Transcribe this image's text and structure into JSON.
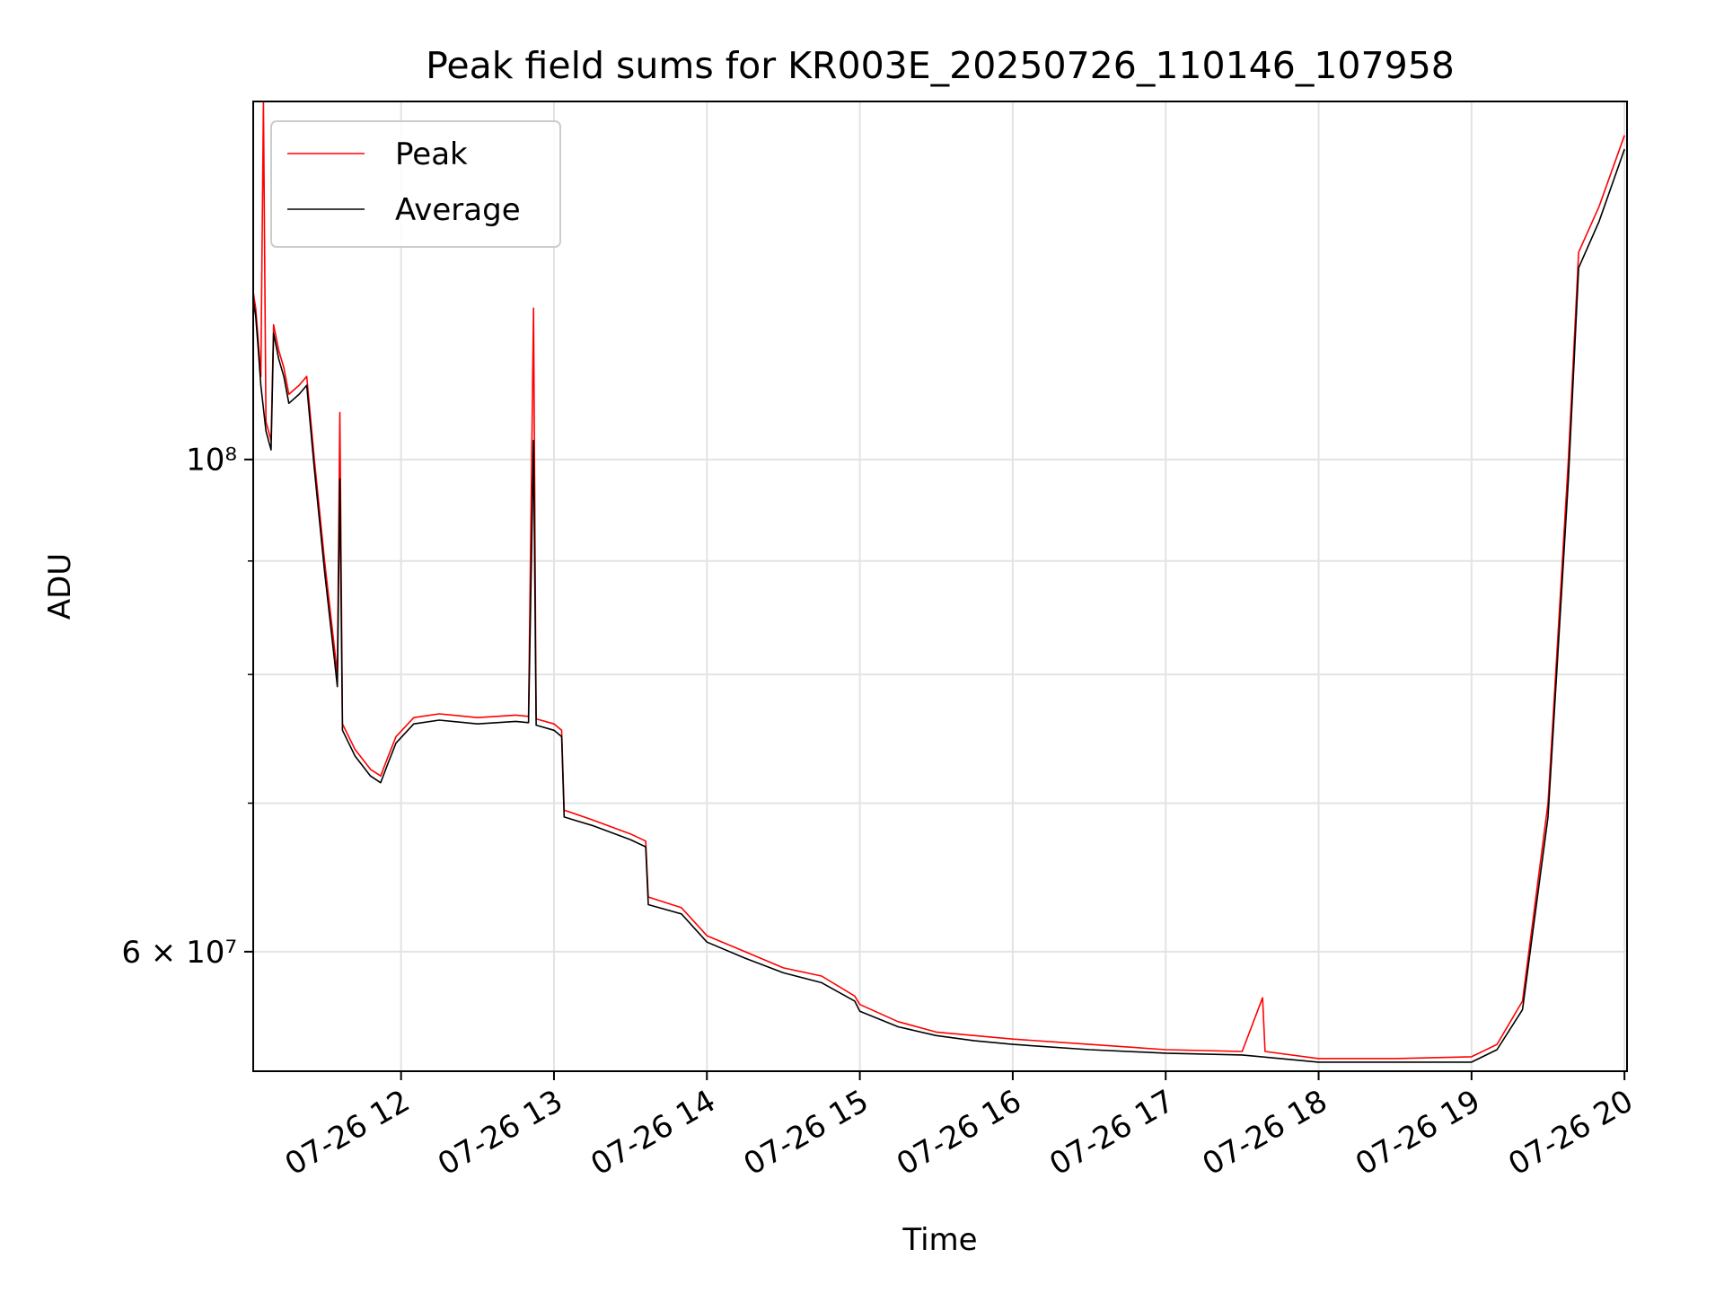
{
  "chart_data": {
    "type": "line",
    "title": "Peak field sums for KR003E_20250726_110146_107958",
    "xlabel": "Time",
    "ylabel": "ADU",
    "x_scale": "time",
    "y_scale": "log",
    "xlim": [
      "2025-07-26 11:02",
      "2025-07-26 20:01"
    ],
    "ylim": [
      53000000,
      145000000
    ],
    "x_ticks": [
      "07-26 12",
      "07-26 13",
      "07-26 14",
      "07-26 15",
      "07-26 16",
      "07-26 17",
      "07-26 18",
      "07-26 19",
      "07-26 20"
    ],
    "x_tick_values": [
      "2025-07-26 12:00",
      "2025-07-26 13:00",
      "2025-07-26 14:00",
      "2025-07-26 15:00",
      "2025-07-26 16:00",
      "2025-07-26 17:00",
      "2025-07-26 18:00",
      "2025-07-26 19:00",
      "2025-07-26 20:00"
    ],
    "y_major_ticks": [
      60000000,
      100000000
    ],
    "y_major_tick_labels": [
      "6 × 10⁷",
      "10⁸"
    ],
    "y_minor_ticks": [
      70000000,
      80000000,
      90000000
    ],
    "grid": true,
    "legend": {
      "position": "upper-left",
      "entries": [
        "Peak",
        "Average"
      ]
    },
    "series": [
      {
        "name": "Peak",
        "color": "#ff0000",
        "points": [
          [
            "2025-07-26 11:02",
            119000000
          ],
          [
            "2025-07-26 11:03",
            117000000
          ],
          [
            "2025-07-26 11:04",
            113000000
          ],
          [
            "2025-07-26 11:05",
            109000000
          ],
          [
            "2025-07-26 11:06",
            145000000
          ],
          [
            "2025-07-26 11:07",
            104000000
          ],
          [
            "2025-07-26 11:09",
            102000000
          ],
          [
            "2025-07-26 11:10",
            115000000
          ],
          [
            "2025-07-26 11:12",
            112000000
          ],
          [
            "2025-07-26 11:14",
            110000000
          ],
          [
            "2025-07-26 11:16",
            107000000
          ],
          [
            "2025-07-26 11:20",
            108000000
          ],
          [
            "2025-07-26 11:23",
            109000000
          ],
          [
            "2025-07-26 11:26",
            100000000
          ],
          [
            "2025-07-26 11:30",
            90000000
          ],
          [
            "2025-07-26 11:34",
            82000000
          ],
          [
            "2025-07-26 11:35",
            80000000
          ],
          [
            "2025-07-26 11:36",
            105000000
          ],
          [
            "2025-07-26 11:37",
            76000000
          ],
          [
            "2025-07-26 11:42",
            74000000
          ],
          [
            "2025-07-26 11:48",
            72500000
          ],
          [
            "2025-07-26 11:52",
            72000000
          ],
          [
            "2025-07-26 11:55",
            73500000
          ],
          [
            "2025-07-26 11:58",
            75000000
          ],
          [
            "2025-07-26 12:05",
            76500000
          ],
          [
            "2025-07-26 12:15",
            76800000
          ],
          [
            "2025-07-26 12:30",
            76500000
          ],
          [
            "2025-07-26 12:45",
            76700000
          ],
          [
            "2025-07-26 12:50",
            76600000
          ],
          [
            "2025-07-26 12:52",
            117000000
          ],
          [
            "2025-07-26 12:53",
            76400000
          ],
          [
            "2025-07-26 13:00",
            76000000
          ],
          [
            "2025-07-26 13:03",
            75500000
          ],
          [
            "2025-07-26 13:04",
            69500000
          ],
          [
            "2025-07-26 13:15",
            68800000
          ],
          [
            "2025-07-26 13:30",
            67800000
          ],
          [
            "2025-07-26 13:36",
            67300000
          ],
          [
            "2025-07-26 13:37",
            63500000
          ],
          [
            "2025-07-26 13:50",
            62800000
          ],
          [
            "2025-07-26 14:00",
            61000000
          ],
          [
            "2025-07-26 14:15",
            60000000
          ],
          [
            "2025-07-26 14:30",
            59000000
          ],
          [
            "2025-07-26 14:45",
            58500000
          ],
          [
            "2025-07-26 14:58",
            57300000
          ],
          [
            "2025-07-26 15:00",
            56800000
          ],
          [
            "2025-07-26 15:15",
            55800000
          ],
          [
            "2025-07-26 15:30",
            55200000
          ],
          [
            "2025-07-26 15:45",
            55000000
          ],
          [
            "2025-07-26 16:00",
            54800000
          ],
          [
            "2025-07-26 16:30",
            54500000
          ],
          [
            "2025-07-26 17:00",
            54200000
          ],
          [
            "2025-07-26 17:30",
            54100000
          ],
          [
            "2025-07-26 17:38",
            57200000
          ],
          [
            "2025-07-26 17:39",
            54100000
          ],
          [
            "2025-07-26 18:00",
            53700000
          ],
          [
            "2025-07-26 18:30",
            53700000
          ],
          [
            "2025-07-26 19:00",
            53800000
          ],
          [
            "2025-07-26 19:10",
            54500000
          ],
          [
            "2025-07-26 19:20",
            57000000
          ],
          [
            "2025-07-26 19:30",
            70000000
          ],
          [
            "2025-07-26 19:38",
            100000000
          ],
          [
            "2025-07-26 19:42",
            124000000
          ],
          [
            "2025-07-26 19:50",
            130000000
          ],
          [
            "2025-07-26 20:00",
            140000000
          ]
        ]
      },
      {
        "name": "Average",
        "color": "#000000",
        "points": [
          [
            "2025-07-26 11:02",
            118000000
          ],
          [
            "2025-07-26 11:03",
            116000000
          ],
          [
            "2025-07-26 11:04",
            112000000
          ],
          [
            "2025-07-26 11:05",
            108000000
          ],
          [
            "2025-07-26 11:07",
            103000000
          ],
          [
            "2025-07-26 11:09",
            101000000
          ],
          [
            "2025-07-26 11:10",
            114000000
          ],
          [
            "2025-07-26 11:12",
            111000000
          ],
          [
            "2025-07-26 11:14",
            109000000
          ],
          [
            "2025-07-26 11:16",
            106000000
          ],
          [
            "2025-07-26 11:20",
            107000000
          ],
          [
            "2025-07-26 11:23",
            108000000
          ],
          [
            "2025-07-26 11:26",
            99000000
          ],
          [
            "2025-07-26 11:30",
            89000000
          ],
          [
            "2025-07-26 11:34",
            81000000
          ],
          [
            "2025-07-26 11:35",
            79000000
          ],
          [
            "2025-07-26 11:36",
            98000000
          ],
          [
            "2025-07-26 11:37",
            75500000
          ],
          [
            "2025-07-26 11:42",
            73500000
          ],
          [
            "2025-07-26 11:48",
            72000000
          ],
          [
            "2025-07-26 11:52",
            71500000
          ],
          [
            "2025-07-26 11:55",
            73000000
          ],
          [
            "2025-07-26 11:58",
            74500000
          ],
          [
            "2025-07-26 12:05",
            76000000
          ],
          [
            "2025-07-26 12:15",
            76300000
          ],
          [
            "2025-07-26 12:30",
            76000000
          ],
          [
            "2025-07-26 12:45",
            76200000
          ],
          [
            "2025-07-26 12:50",
            76100000
          ],
          [
            "2025-07-26 12:52",
            102000000
          ],
          [
            "2025-07-26 12:53",
            75900000
          ],
          [
            "2025-07-26 13:00",
            75500000
          ],
          [
            "2025-07-26 13:03",
            75000000
          ],
          [
            "2025-07-26 13:04",
            69000000
          ],
          [
            "2025-07-26 13:15",
            68400000
          ],
          [
            "2025-07-26 13:30",
            67400000
          ],
          [
            "2025-07-26 13:36",
            66900000
          ],
          [
            "2025-07-26 13:37",
            63000000
          ],
          [
            "2025-07-26 13:50",
            62400000
          ],
          [
            "2025-07-26 14:00",
            60600000
          ],
          [
            "2025-07-26 14:15",
            59600000
          ],
          [
            "2025-07-26 14:30",
            58700000
          ],
          [
            "2025-07-26 14:45",
            58100000
          ],
          [
            "2025-07-26 14:58",
            57000000
          ],
          [
            "2025-07-26 15:00",
            56400000
          ],
          [
            "2025-07-26 15:15",
            55500000
          ],
          [
            "2025-07-26 15:30",
            55000000
          ],
          [
            "2025-07-26 15:45",
            54700000
          ],
          [
            "2025-07-26 16:00",
            54500000
          ],
          [
            "2025-07-26 16:30",
            54200000
          ],
          [
            "2025-07-26 17:00",
            54000000
          ],
          [
            "2025-07-26 17:30",
            53900000
          ],
          [
            "2025-07-26 18:00",
            53500000
          ],
          [
            "2025-07-26 18:30",
            53500000
          ],
          [
            "2025-07-26 19:00",
            53500000
          ],
          [
            "2025-07-26 19:10",
            54200000
          ],
          [
            "2025-07-26 19:20",
            56500000
          ],
          [
            "2025-07-26 19:30",
            69000000
          ],
          [
            "2025-07-26 19:38",
            98000000
          ],
          [
            "2025-07-26 19:42",
            122000000
          ],
          [
            "2025-07-26 19:50",
            128000000
          ],
          [
            "2025-07-26 20:00",
            138000000
          ]
        ]
      }
    ]
  }
}
